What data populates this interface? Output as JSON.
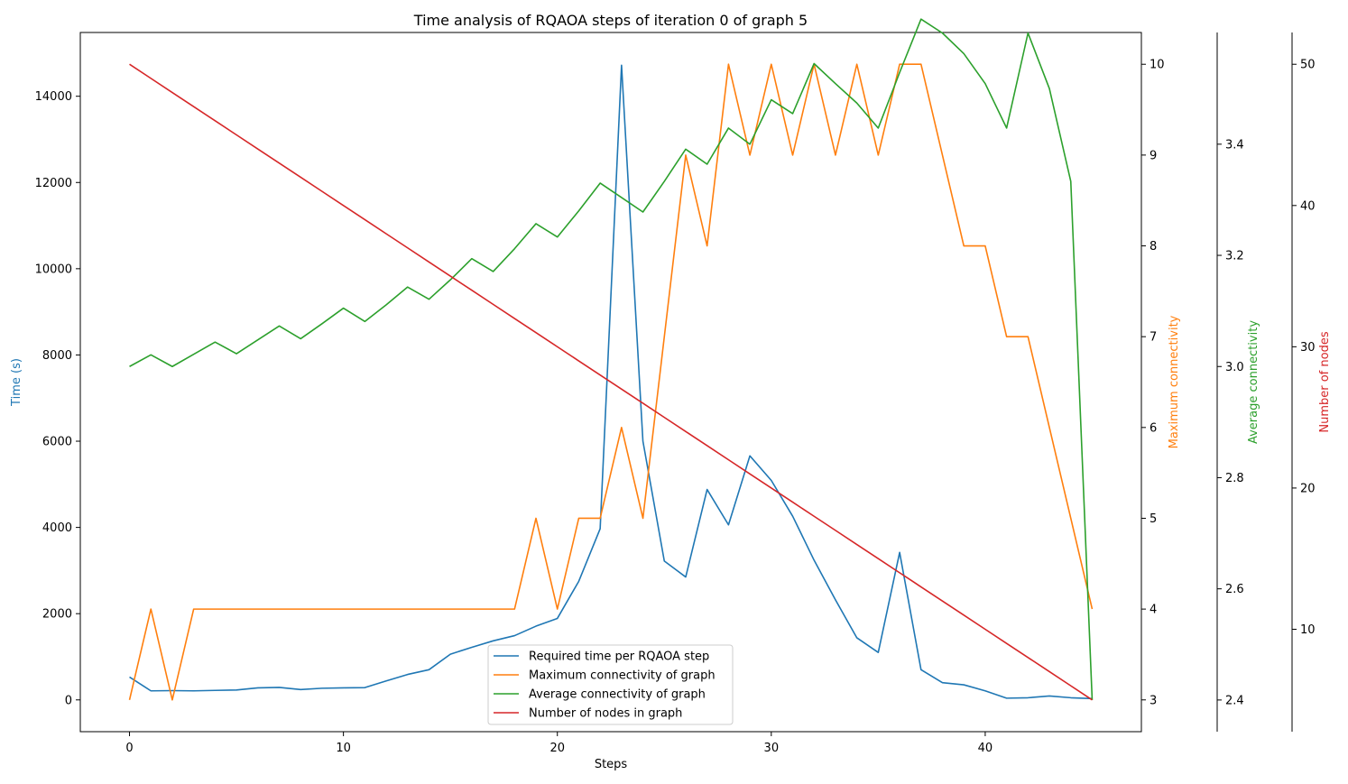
{
  "chart_data": {
    "type": "line",
    "title": "Time analysis of RQAOA steps of iteration 0 of graph 5",
    "xlabel": "Steps",
    "xlim": [
      -2.3,
      47.3
    ],
    "xticks": [
      0,
      10,
      20,
      30,
      40
    ],
    "grid": false,
    "legend_position": "lower center",
    "axes": [
      {
        "id": "time",
        "label": "Time (s)",
        "side": "left",
        "color": "#1f77b4",
        "ylim": [
          -737,
          15479
        ],
        "ticks": [
          0,
          2000,
          4000,
          6000,
          8000,
          10000,
          12000,
          14000
        ]
      },
      {
        "id": "maxconn",
        "label": "Maximum connectivity",
        "side": "right",
        "color": "#ff7f0e",
        "ylim": [
          2.65,
          10.35
        ],
        "ticks": [
          3,
          4,
          5,
          6,
          7,
          8,
          9,
          10
        ]
      },
      {
        "id": "avgconn",
        "label": "Average connectivity",
        "side": "right",
        "color": "#2ca02c",
        "ylim": [
          2.343,
          3.601
        ],
        "ticks": [
          2.4,
          2.6,
          2.8,
          3.0,
          3.2,
          3.4
        ]
      },
      {
        "id": "nodes",
        "label": "Number of nodes",
        "side": "right",
        "color": "#d62728",
        "ylim": [
          2.75,
          52.25
        ],
        "ticks": [
          10,
          20,
          30,
          40,
          50
        ]
      }
    ],
    "series": [
      {
        "name": "Required time per RQAOA step",
        "axis": "time",
        "color": "#1f77b4",
        "x": [
          0,
          1,
          2,
          3,
          4,
          5,
          6,
          7,
          8,
          9,
          10,
          11,
          12,
          13,
          14,
          15,
          16,
          17,
          18,
          19,
          20,
          21,
          22,
          23,
          24,
          25,
          26,
          27,
          28,
          29,
          30,
          31,
          32,
          33,
          34,
          35,
          36,
          37,
          38,
          39,
          40,
          41,
          42,
          43,
          44,
          45
        ],
        "values": [
          530,
          210,
          215,
          210,
          220,
          230,
          280,
          290,
          240,
          270,
          280,
          285,
          440,
          590,
          700,
          1060,
          1220,
          1370,
          1490,
          1710,
          1890,
          2750,
          3970,
          14720,
          6000,
          3220,
          2850,
          4880,
          4060,
          5660,
          5090,
          4260,
          3240,
          2320,
          1440,
          1100,
          3420,
          700,
          400,
          350,
          210,
          40,
          50,
          90,
          50,
          30
        ]
      },
      {
        "name": "Maximum connectivity of graph",
        "axis": "maxconn",
        "color": "#ff7f0e",
        "x": [
          0,
          1,
          2,
          3,
          4,
          5,
          6,
          7,
          8,
          9,
          10,
          11,
          12,
          13,
          14,
          15,
          16,
          17,
          18,
          19,
          20,
          21,
          22,
          23,
          24,
          25,
          26,
          27,
          28,
          29,
          30,
          31,
          32,
          33,
          34,
          35,
          36,
          37,
          38,
          39,
          40,
          41,
          42,
          43,
          44,
          45
        ],
        "values": [
          3,
          4,
          3,
          4,
          4,
          4,
          4,
          4,
          4,
          4,
          4,
          4,
          4,
          4,
          4,
          4,
          4,
          4,
          4,
          5,
          4,
          5,
          5,
          6,
          5,
          7,
          9,
          8,
          10,
          9,
          10,
          9,
          10,
          9,
          10,
          9,
          10,
          10,
          9,
          8,
          8,
          7,
          7,
          6,
          5,
          4
        ]
      },
      {
        "name": "Average connectivity of graph",
        "axis": "avgconn",
        "color": "#2ca02c",
        "x": [
          0,
          1,
          2,
          3,
          4,
          5,
          6,
          7,
          8,
          9,
          10,
          11,
          12,
          13,
          14,
          15,
          16,
          17,
          18,
          19,
          20,
          21,
          22,
          23,
          24,
          25,
          26,
          27,
          28,
          29,
          30,
          31,
          32,
          33,
          34,
          35,
          36,
          37,
          38,
          39,
          40,
          41,
          42,
          43,
          44,
          45
        ],
        "values": [
          3.0,
          3.021,
          3.0,
          3.022,
          3.044,
          3.023,
          3.048,
          3.073,
          3.05,
          3.077,
          3.105,
          3.081,
          3.111,
          3.143,
          3.121,
          3.156,
          3.194,
          3.171,
          3.212,
          3.257,
          3.233,
          3.28,
          3.33,
          3.304,
          3.278,
          3.333,
          3.391,
          3.364,
          3.429,
          3.4,
          3.48,
          3.455,
          3.545,
          3.509,
          3.474,
          3.429,
          3.529,
          3.625,
          3.6,
          3.563,
          3.509,
          3.429,
          3.6,
          3.5,
          3.333,
          2.4
        ]
      },
      {
        "name": "Number of nodes in graph",
        "axis": "nodes",
        "color": "#d62728",
        "x": [
          0,
          1,
          2,
          3,
          4,
          5,
          6,
          7,
          8,
          9,
          10,
          11,
          12,
          13,
          14,
          15,
          16,
          17,
          18,
          19,
          20,
          21,
          22,
          23,
          24,
          25,
          26,
          27,
          28,
          29,
          30,
          31,
          32,
          33,
          34,
          35,
          36,
          37,
          38,
          39,
          40,
          41,
          42,
          43,
          44,
          45
        ],
        "values": [
          50,
          49,
          48,
          47,
          46,
          45,
          44,
          43,
          42,
          41,
          40,
          39,
          38,
          37,
          36,
          35,
          34,
          33,
          32,
          31,
          30,
          29,
          28,
          27,
          26,
          25,
          24,
          23,
          22,
          21,
          20,
          19,
          18,
          17,
          16,
          15,
          14,
          13,
          12,
          11,
          10,
          9,
          8,
          7,
          6,
          5
        ]
      }
    ]
  }
}
